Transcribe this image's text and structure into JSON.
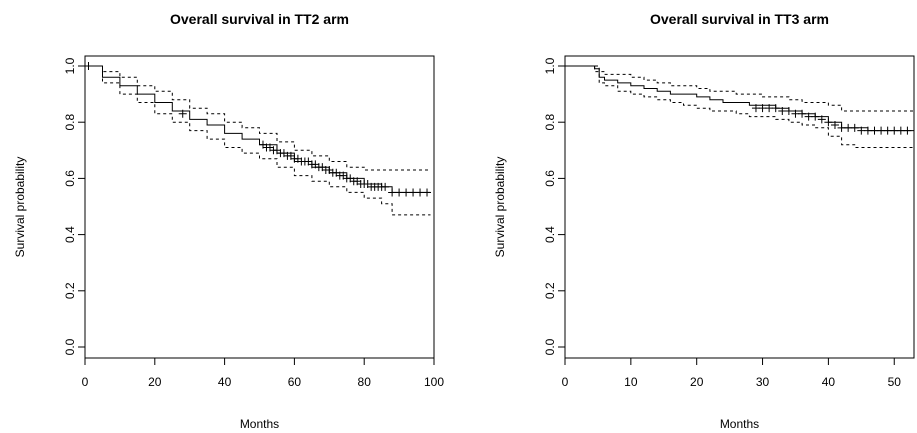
{
  "chart_data": [
    {
      "type": "line",
      "title": "Overall survival in TT2 arm",
      "xlabel": "Months",
      "ylabel": "Survival probability",
      "xlim": [
        0,
        100
      ],
      "ylim": [
        0,
        1
      ],
      "xticks": [
        "0",
        "20",
        "40",
        "60",
        "80",
        "100"
      ],
      "yticks": [
        "0.0",
        "0.2",
        "0.4",
        "0.6",
        "0.8",
        "1.0"
      ],
      "grid": false,
      "series": [
        {
          "role": "estimate",
          "style": "solid",
          "shape": "step",
          "x": [
            0,
            5,
            10,
            15,
            20,
            25,
            30,
            35,
            40,
            45,
            50,
            55,
            60,
            65,
            70,
            75,
            80,
            85,
            88,
            90,
            95,
            99
          ],
          "y": [
            1.0,
            0.96,
            0.93,
            0.9,
            0.87,
            0.84,
            0.81,
            0.79,
            0.76,
            0.74,
            0.72,
            0.69,
            0.66,
            0.64,
            0.62,
            0.6,
            0.58,
            0.57,
            0.55,
            0.55,
            0.55,
            0.55
          ]
        },
        {
          "role": "upper-ci",
          "style": "dashed",
          "shape": "step",
          "x": [
            0,
            5,
            10,
            15,
            20,
            25,
            30,
            35,
            40,
            45,
            50,
            55,
            60,
            65,
            70,
            75,
            80,
            85,
            88,
            90,
            95,
            99
          ],
          "y": [
            1.0,
            0.98,
            0.96,
            0.93,
            0.91,
            0.88,
            0.85,
            0.83,
            0.8,
            0.78,
            0.76,
            0.73,
            0.7,
            0.68,
            0.66,
            0.64,
            0.63,
            0.63,
            0.63,
            0.63,
            0.63,
            0.63
          ]
        },
        {
          "role": "lower-ci",
          "style": "dashed",
          "shape": "step",
          "x": [
            0,
            5,
            10,
            15,
            20,
            25,
            30,
            35,
            40,
            45,
            50,
            55,
            60,
            65,
            70,
            75,
            80,
            85,
            88,
            90,
            95,
            99
          ],
          "y": [
            1.0,
            0.94,
            0.9,
            0.87,
            0.83,
            0.8,
            0.77,
            0.74,
            0.71,
            0.69,
            0.67,
            0.64,
            0.61,
            0.59,
            0.57,
            0.55,
            0.53,
            0.51,
            0.47,
            0.47,
            0.47,
            0.47
          ]
        }
      ],
      "censor_marks": {
        "x": [
          1,
          28,
          51,
          52,
          53,
          54,
          55,
          56,
          57,
          58,
          59,
          60,
          61,
          62,
          63,
          64,
          65,
          66,
          67,
          68,
          69,
          70,
          71,
          72,
          73,
          74,
          75,
          76,
          77,
          78,
          79,
          80,
          81,
          82,
          83,
          84,
          85,
          86,
          88,
          90,
          92,
          94,
          96,
          98
        ],
        "y": [
          1.0,
          0.83,
          0.72,
          0.71,
          0.71,
          0.7,
          0.7,
          0.69,
          0.69,
          0.68,
          0.68,
          0.67,
          0.67,
          0.66,
          0.66,
          0.66,
          0.65,
          0.65,
          0.64,
          0.64,
          0.63,
          0.63,
          0.62,
          0.62,
          0.61,
          0.61,
          0.6,
          0.6,
          0.59,
          0.59,
          0.58,
          0.58,
          0.58,
          0.57,
          0.57,
          0.57,
          0.57,
          0.57,
          0.55,
          0.55,
          0.55,
          0.55,
          0.55,
          0.55
        ]
      }
    },
    {
      "type": "line",
      "title": "Overall survival in TT3 arm",
      "xlabel": "Months",
      "ylabel": "Survival probability",
      "xlim": [
        0,
        53
      ],
      "ylim": [
        0,
        1
      ],
      "xticks": [
        "0",
        "10",
        "20",
        "30",
        "40",
        "50"
      ],
      "yticks": [
        "0.0",
        "0.2",
        "0.4",
        "0.6",
        "0.8",
        "1.0"
      ],
      "grid": false,
      "series": [
        {
          "role": "estimate",
          "style": "solid",
          "shape": "step",
          "x": [
            0,
            4.5,
            5.2,
            6,
            8,
            10,
            12,
            14,
            16,
            18,
            20,
            22,
            24,
            26,
            28,
            30,
            32,
            34,
            36,
            38,
            40,
            42,
            44,
            46,
            48,
            50,
            53
          ],
          "y": [
            1.0,
            0.99,
            0.96,
            0.95,
            0.94,
            0.93,
            0.92,
            0.91,
            0.9,
            0.9,
            0.89,
            0.88,
            0.87,
            0.87,
            0.86,
            0.86,
            0.85,
            0.84,
            0.83,
            0.82,
            0.8,
            0.78,
            0.78,
            0.77,
            0.77,
            0.77,
            0.77
          ]
        },
        {
          "role": "upper-ci",
          "style": "dashed",
          "shape": "step",
          "x": [
            0,
            4.5,
            5.2,
            6,
            8,
            10,
            12,
            14,
            16,
            18,
            20,
            22,
            24,
            26,
            28,
            30,
            32,
            34,
            36,
            38,
            40,
            42,
            44,
            46,
            48,
            50,
            53
          ],
          "y": [
            1.0,
            1.0,
            0.98,
            0.97,
            0.97,
            0.96,
            0.95,
            0.94,
            0.93,
            0.93,
            0.92,
            0.91,
            0.91,
            0.9,
            0.9,
            0.89,
            0.89,
            0.88,
            0.87,
            0.87,
            0.86,
            0.84,
            0.84,
            0.84,
            0.84,
            0.84,
            0.84
          ]
        },
        {
          "role": "lower-ci",
          "style": "dashed",
          "shape": "step",
          "x": [
            0,
            4.5,
            5.2,
            6,
            8,
            10,
            12,
            14,
            16,
            18,
            20,
            22,
            24,
            26,
            28,
            30,
            32,
            34,
            36,
            38,
            40,
            42,
            44,
            46,
            48,
            50,
            53
          ],
          "y": [
            1.0,
            0.98,
            0.94,
            0.93,
            0.91,
            0.9,
            0.89,
            0.88,
            0.87,
            0.86,
            0.85,
            0.84,
            0.84,
            0.83,
            0.82,
            0.82,
            0.81,
            0.8,
            0.79,
            0.78,
            0.75,
            0.72,
            0.71,
            0.71,
            0.71,
            0.71,
            0.71
          ]
        }
      ],
      "censor_marks": {
        "x": [
          29,
          30,
          31,
          32,
          33,
          34,
          35,
          36,
          37,
          38,
          39,
          40,
          41,
          42,
          43,
          44,
          45,
          46,
          47,
          48,
          49,
          50,
          51,
          52
        ],
        "y": [
          0.85,
          0.85,
          0.85,
          0.85,
          0.84,
          0.84,
          0.83,
          0.83,
          0.82,
          0.82,
          0.81,
          0.8,
          0.79,
          0.78,
          0.78,
          0.78,
          0.77,
          0.77,
          0.77,
          0.77,
          0.77,
          0.77,
          0.77,
          0.77
        ]
      }
    }
  ]
}
